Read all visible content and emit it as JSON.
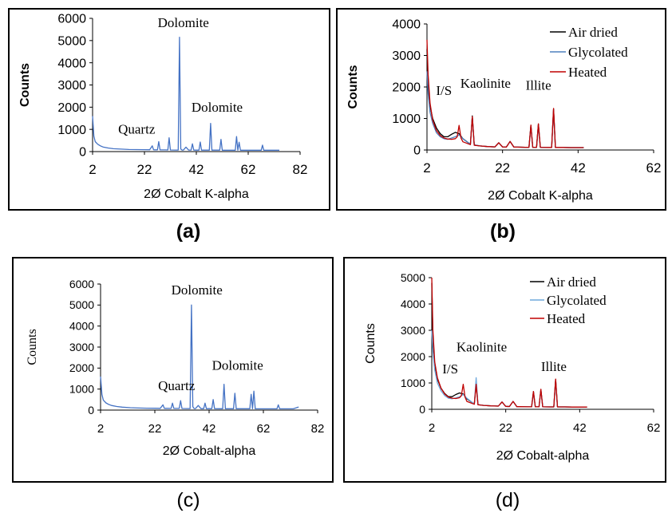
{
  "chart_data": [
    {
      "panel": "a",
      "type": "line",
      "caption": "(a)",
      "xlabel": "2Ø Cobalt K-alpha",
      "ylabel": "Counts",
      "xlim": [
        2,
        82
      ],
      "ylim": [
        0,
        6000
      ],
      "xticks": [
        2,
        22,
        42,
        62,
        82
      ],
      "yticks": [
        0,
        1000,
        2000,
        3000,
        4000,
        5000,
        6000
      ],
      "series": [
        {
          "color": "#4472c4",
          "x": [
            2,
            2.5,
            3,
            4,
            5,
            6,
            8,
            10,
            13,
            16,
            19,
            22,
            24,
            25,
            25.5,
            26,
            27,
            27.5,
            28,
            29,
            30,
            31,
            31.5,
            32,
            34,
            35,
            35.5,
            36,
            36.5,
            37,
            38,
            39,
            40,
            40.5,
            41,
            42,
            43,
            43.5,
            44,
            46,
            47,
            47.5,
            48,
            50,
            51,
            51.5,
            52,
            55,
            57,
            57.5,
            58,
            58.5,
            59,
            60,
            62,
            64,
            66,
            67,
            67.5,
            68,
            69,
            71,
            73,
            74
          ],
          "y": [
            1600,
            700,
            450,
            330,
            260,
            210,
            160,
            130,
            110,
            95,
            90,
            85,
            82,
            260,
            82,
            80,
            78,
            450,
            78,
            75,
            75,
            73,
            620,
            72,
            70,
            70,
            5150,
            120,
            70,
            68,
            200,
            68,
            68,
            350,
            68,
            66,
            66,
            430,
            66,
            64,
            64,
            1270,
            64,
            63,
            63,
            550,
            62,
            62,
            62,
            680,
            62,
            420,
            62,
            60,
            60,
            60,
            60,
            60,
            290,
            60,
            60,
            60,
            60,
            60
          ]
        }
      ],
      "annotations": [
        {
          "text": "Dolomite",
          "x": 37,
          "y": 5600
        },
        {
          "text": "Dolomite",
          "x": 50,
          "y": 1800
        },
        {
          "text": "Quartz",
          "x": 19,
          "y": 800
        }
      ]
    },
    {
      "panel": "b",
      "type": "line",
      "caption": "(b)",
      "xlabel": "2Ø Cobalt K-alpha",
      "ylabel": "Counts",
      "xlim": [
        2,
        62
      ],
      "ylim": [
        0,
        4000
      ],
      "xticks": [
        2,
        22,
        42,
        62
      ],
      "yticks": [
        0,
        1000,
        2000,
        3000,
        4000
      ],
      "series": [
        {
          "name": "Air dried",
          "color": "#000000",
          "x": [
            2,
            2.3,
            2.8,
            3.5,
            4.5,
            5.5,
            6.5,
            7.5,
            8.5,
            9.5,
            10.5,
            11.5,
            13.5,
            14,
            14.5,
            16,
            18,
            20,
            21,
            22,
            23,
            24,
            25,
            26,
            28,
            29,
            29.5,
            30,
            31,
            31.5,
            32,
            34,
            35,
            35.5,
            36,
            38,
            40,
            42,
            43.5
          ],
          "y": [
            3200,
            2000,
            1400,
            1000,
            700,
            520,
            420,
            420,
            500,
            560,
            520,
            360,
            180,
            1080,
            160,
            130,
            110,
            100,
            230,
            95,
            90,
            270,
            90,
            90,
            85,
            85,
            780,
            85,
            85,
            820,
            85,
            80,
            80,
            1300,
            80,
            80,
            75,
            75,
            75
          ]
        },
        {
          "name": "Glycolated",
          "color": "#4f81bd",
          "x": [
            2,
            2.3,
            2.8,
            3.5,
            4.5,
            5.5,
            6.5,
            7.5,
            8.5,
            9.5,
            10.5,
            11.5,
            13.5,
            14,
            14.5,
            16,
            18,
            20,
            21,
            22,
            23,
            24,
            25,
            26,
            28,
            29,
            29.5,
            30,
            31,
            31.5,
            32,
            34,
            35,
            35.5,
            36,
            38,
            40,
            42,
            43.5
          ],
          "y": [
            2500,
            1800,
            1200,
            850,
            550,
            420,
            360,
            340,
            380,
            420,
            480,
            360,
            180,
            1050,
            160,
            130,
            110,
            100,
            230,
            95,
            90,
            270,
            90,
            90,
            85,
            85,
            760,
            85,
            85,
            800,
            85,
            80,
            80,
            1280,
            80,
            80,
            75,
            75,
            75
          ]
        },
        {
          "name": "Heated",
          "color": "#c00000",
          "x": [
            2,
            2.3,
            2.8,
            3.5,
            4.5,
            5.5,
            6.5,
            7.5,
            8.5,
            9.5,
            10,
            10.5,
            11,
            11.5,
            13.5,
            14,
            14.5,
            16,
            18,
            20,
            21,
            22,
            23,
            24,
            25,
            26,
            28,
            29,
            29.5,
            30,
            31,
            31.5,
            32,
            34,
            35,
            35.5,
            36,
            38,
            40,
            42,
            43.5
          ],
          "y": [
            3500,
            2400,
            1500,
            950,
            620,
            460,
            380,
            350,
            340,
            360,
            420,
            780,
            380,
            260,
            170,
            1060,
            150,
            130,
            110,
            100,
            230,
            95,
            90,
            270,
            90,
            90,
            85,
            85,
            790,
            85,
            85,
            830,
            85,
            80,
            80,
            1320,
            80,
            80,
            75,
            75,
            75
          ]
        }
      ],
      "legend_position": "top-right",
      "annotations": [
        {
          "text": "Kaolinite",
          "x": 17.5,
          "y": 1970
        },
        {
          "text": "I/S",
          "x": 6.5,
          "y": 1750
        },
        {
          "text": "Illite",
          "x": 31.5,
          "y": 1910
        }
      ]
    },
    {
      "panel": "c",
      "type": "line",
      "caption": "(c)",
      "xlabel": "2Ø Cobalt-alpha",
      "ylabel": "Counts",
      "xlim": [
        2,
        82
      ],
      "ylim": [
        0,
        6000
      ],
      "xticks": [
        2,
        22,
        42,
        62,
        82
      ],
      "yticks": [
        0,
        1000,
        2000,
        3000,
        4000,
        5000,
        6000
      ],
      "series": [
        {
          "color": "#4472c4",
          "x": [
            2,
            2.5,
            3,
            4,
            5,
            6,
            8,
            10,
            13,
            16,
            19,
            22,
            24,
            25,
            25.5,
            26,
            28,
            28.5,
            29,
            31,
            31.5,
            32,
            34,
            35,
            35.5,
            36,
            36.5,
            37,
            38,
            39,
            40,
            40.5,
            41,
            42,
            43,
            43.5,
            44,
            46,
            47,
            47.5,
            48,
            50,
            51,
            51.5,
            52,
            55,
            57,
            57.5,
            58,
            58.5,
            59,
            60,
            62,
            64,
            66,
            67,
            67.5,
            68,
            69,
            71,
            73,
            75
          ],
          "y": [
            1600,
            750,
            480,
            340,
            270,
            220,
            170,
            140,
            115,
            100,
            92,
            88,
            85,
            250,
            85,
            82,
            80,
            330,
            80,
            78,
            450,
            76,
            74,
            74,
            5000,
            160,
            72,
            72,
            220,
            70,
            70,
            330,
            70,
            68,
            68,
            500,
            68,
            66,
            66,
            1230,
            66,
            65,
            65,
            800,
            64,
            64,
            64,
            750,
            64,
            900,
            64,
            62,
            62,
            62,
            62,
            62,
            250,
            62,
            62,
            62,
            62,
            150
          ]
        }
      ],
      "annotations": [
        {
          "text": "Dolomite",
          "x": 37.5,
          "y": 5500
        },
        {
          "text": "Dolomite",
          "x": 52.5,
          "y": 1920
        },
        {
          "text": "Quartz",
          "x": 30,
          "y": 950
        }
      ]
    },
    {
      "panel": "d",
      "type": "line",
      "caption": "(d)",
      "xlabel": "2Ø Cobalt-alpha",
      "ylabel": "Counts",
      "xlim": [
        2,
        62
      ],
      "ylim": [
        0,
        5000
      ],
      "xticks": [
        2,
        22,
        42,
        62
      ],
      "yticks": [
        0,
        1000,
        2000,
        3000,
        4000,
        5000
      ],
      "series": [
        {
          "name": "Air dried",
          "color": "#000000",
          "x": [
            2,
            2.3,
            2.8,
            3.5,
            4.5,
            5.5,
            6.5,
            7.5,
            8.5,
            9.5,
            10.5,
            11.5,
            13.5,
            14,
            14.5,
            16,
            18,
            20,
            21,
            22,
            23,
            24,
            25,
            26,
            28,
            29,
            29.5,
            30,
            31,
            31.5,
            32,
            34,
            35,
            35.5,
            36,
            38,
            40,
            42,
            44
          ],
          "y": [
            4800,
            2700,
            1700,
            1150,
            800,
            600,
            480,
            480,
            560,
            620,
            580,
            400,
            200,
            1000,
            180,
            150,
            130,
            120,
            280,
            110,
            105,
            300,
            100,
            100,
            95,
            95,
            670,
            95,
            95,
            750,
            95,
            90,
            90,
            1130,
            90,
            90,
            85,
            85,
            85
          ]
        },
        {
          "name": "Glycolated",
          "color": "#6fa8dc",
          "x": [
            2,
            2.3,
            2.8,
            3.5,
            4.5,
            5.5,
            6.5,
            7.5,
            8.5,
            9.5,
            10.5,
            11.5,
            13.5,
            14,
            14.5,
            16,
            18,
            20,
            21,
            22,
            23,
            24,
            25,
            26,
            28,
            29,
            29.5,
            30,
            31,
            31.5,
            32,
            34,
            35,
            35.5,
            36,
            38,
            40,
            42,
            44
          ],
          "y": [
            3000,
            2200,
            1500,
            1000,
            700,
            520,
            420,
            400,
            430,
            480,
            560,
            420,
            200,
            1200,
            180,
            150,
            130,
            120,
            280,
            110,
            105,
            300,
            100,
            100,
            95,
            95,
            650,
            95,
            95,
            730,
            95,
            90,
            90,
            1100,
            90,
            90,
            85,
            85,
            85
          ]
        },
        {
          "name": "Heated",
          "color": "#c00000",
          "x": [
            2,
            2.3,
            2.8,
            3.5,
            4.5,
            5.5,
            6.5,
            7.5,
            8.5,
            9.5,
            10,
            10.5,
            11,
            11.5,
            13.5,
            14,
            14.5,
            16,
            18,
            20,
            21,
            22,
            23,
            24,
            25,
            26,
            28,
            29,
            29.5,
            30,
            31,
            31.5,
            32,
            34,
            35,
            35.5,
            36,
            38,
            40,
            42,
            44
          ],
          "y": [
            5000,
            3000,
            1800,
            1200,
            800,
            580,
            460,
            420,
            410,
            440,
            520,
            950,
            460,
            300,
            190,
            950,
            170,
            150,
            130,
            120,
            280,
            110,
            105,
            300,
            100,
            100,
            95,
            95,
            680,
            95,
            95,
            760,
            95,
            90,
            90,
            1150,
            90,
            90,
            85,
            85,
            85
          ]
        }
      ],
      "legend_position": "top-right",
      "annotations": [
        {
          "text": "Kaolinite",
          "x": 15.5,
          "y": 2200
        },
        {
          "text": "I/S",
          "x": 7,
          "y": 1360
        },
        {
          "text": "Illite",
          "x": 35,
          "y": 1460
        }
      ]
    }
  ]
}
